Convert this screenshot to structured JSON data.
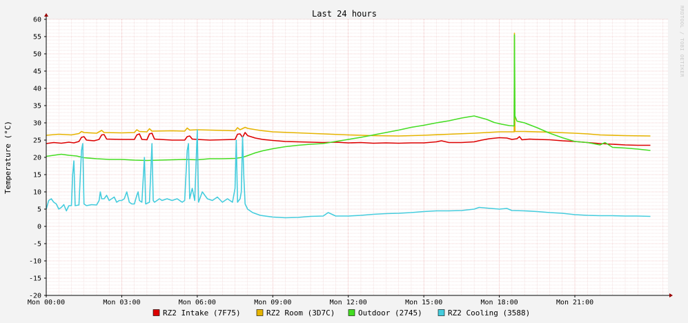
{
  "chart_data": {
    "type": "line",
    "title": "Last 24 hours",
    "ylabel": "Temperature (°C)",
    "watermark": "RRDTOOL / TOBI OETIKER",
    "ylim": [
      -20,
      60
    ],
    "xlim": [
      0,
      24.7
    ],
    "y_ticks": [
      60,
      55,
      50,
      45,
      40,
      35,
      30,
      25,
      20,
      15,
      10,
      5,
      0,
      -5,
      -10,
      -15,
      -20
    ],
    "x_ticks": [
      {
        "x": 0,
        "label": "Mon 00:00"
      },
      {
        "x": 3,
        "label": "Mon 03:00"
      },
      {
        "x": 6,
        "label": "Mon 06:00"
      },
      {
        "x": 9,
        "label": "Mon 09:00"
      },
      {
        "x": 12,
        "label": "Mon 12:00"
      },
      {
        "x": 15,
        "label": "Mon 15:00"
      },
      {
        "x": 18,
        "label": "Mon 18:00"
      },
      {
        "x": 21,
        "label": "Mon 21:00"
      }
    ],
    "grid": true,
    "legend_position": "bottom",
    "series": [
      {
        "name": "RZ2 Intake (7F75)",
        "color": "#dd0000",
        "points": [
          [
            0,
            24.0
          ],
          [
            0.3,
            24.3
          ],
          [
            0.6,
            24.1
          ],
          [
            0.9,
            24.4
          ],
          [
            1.1,
            24.2
          ],
          [
            1.3,
            24.6
          ],
          [
            1.4,
            25.8
          ],
          [
            1.5,
            26.0
          ],
          [
            1.6,
            25.0
          ],
          [
            1.9,
            24.8
          ],
          [
            2.1,
            25.2
          ],
          [
            2.2,
            26.5
          ],
          [
            2.3,
            26.6
          ],
          [
            2.4,
            25.3
          ],
          [
            3.0,
            25.2
          ],
          [
            3.5,
            25.2
          ],
          [
            3.6,
            26.5
          ],
          [
            3.7,
            26.8
          ],
          [
            3.8,
            25.2
          ],
          [
            4.0,
            25.1
          ],
          [
            4.1,
            26.8
          ],
          [
            4.2,
            27.0
          ],
          [
            4.3,
            25.3
          ],
          [
            5.0,
            25.0
          ],
          [
            5.5,
            25.0
          ],
          [
            5.6,
            26.0
          ],
          [
            5.7,
            26.2
          ],
          [
            5.8,
            25.3
          ],
          [
            6.0,
            25.2
          ],
          [
            6.5,
            25.0
          ],
          [
            7.0,
            25.1
          ],
          [
            7.5,
            25.2
          ],
          [
            7.6,
            26.7
          ],
          [
            7.7,
            26.8
          ],
          [
            7.8,
            25.8
          ],
          [
            7.9,
            27.2
          ],
          [
            8.0,
            26.3
          ],
          [
            8.3,
            25.6
          ],
          [
            8.6,
            25.2
          ],
          [
            9.0,
            24.9
          ],
          [
            9.5,
            24.6
          ],
          [
            10.0,
            24.5
          ],
          [
            10.5,
            24.4
          ],
          [
            11.0,
            24.3
          ],
          [
            11.5,
            24.4
          ],
          [
            12.0,
            24.2
          ],
          [
            12.5,
            24.3
          ],
          [
            13.0,
            24.1
          ],
          [
            13.5,
            24.2
          ],
          [
            14.0,
            24.1
          ],
          [
            14.5,
            24.2
          ],
          [
            15.0,
            24.2
          ],
          [
            15.5,
            24.5
          ],
          [
            15.7,
            24.8
          ],
          [
            16.0,
            24.3
          ],
          [
            16.5,
            24.3
          ],
          [
            17.0,
            24.5
          ],
          [
            17.3,
            25.0
          ],
          [
            17.6,
            25.4
          ],
          [
            18.0,
            25.7
          ],
          [
            18.3,
            25.6
          ],
          [
            18.5,
            25.2
          ],
          [
            18.7,
            25.4
          ],
          [
            18.8,
            26.0
          ],
          [
            18.9,
            25.1
          ],
          [
            19.2,
            25.3
          ],
          [
            19.5,
            25.2
          ],
          [
            20.0,
            25.1
          ],
          [
            20.5,
            24.8
          ],
          [
            21.0,
            24.6
          ],
          [
            21.5,
            24.3
          ],
          [
            22.0,
            24.0
          ],
          [
            22.5,
            23.8
          ],
          [
            23.0,
            23.6
          ],
          [
            23.5,
            23.5
          ],
          [
            24.0,
            23.5
          ]
        ]
      },
      {
        "name": "RZ2 Room (3D7C)",
        "color": "#e6b400",
        "points": [
          [
            0,
            26.4
          ],
          [
            0.5,
            26.7
          ],
          [
            1.0,
            26.5
          ],
          [
            1.3,
            26.9
          ],
          [
            1.4,
            27.5
          ],
          [
            1.5,
            27.2
          ],
          [
            2.0,
            27.0
          ],
          [
            2.2,
            27.8
          ],
          [
            2.3,
            27.2
          ],
          [
            3.0,
            27.1
          ],
          [
            3.5,
            27.2
          ],
          [
            3.6,
            28.0
          ],
          [
            3.7,
            27.5
          ],
          [
            4.0,
            27.4
          ],
          [
            4.1,
            28.3
          ],
          [
            4.2,
            27.6
          ],
          [
            5.0,
            27.7
          ],
          [
            5.5,
            27.6
          ],
          [
            5.6,
            28.5
          ],
          [
            5.7,
            27.9
          ],
          [
            6.0,
            28.0
          ],
          [
            6.5,
            27.9
          ],
          [
            7.0,
            27.8
          ],
          [
            7.5,
            27.7
          ],
          [
            7.6,
            28.6
          ],
          [
            7.7,
            28.0
          ],
          [
            7.9,
            28.7
          ],
          [
            8.0,
            28.4
          ],
          [
            8.5,
            27.8
          ],
          [
            9.0,
            27.4
          ],
          [
            10.0,
            27.1
          ],
          [
            11.0,
            26.8
          ],
          [
            12.0,
            26.5
          ],
          [
            13.0,
            26.3
          ],
          [
            14.0,
            26.2
          ],
          [
            15.0,
            26.4
          ],
          [
            16.0,
            26.7
          ],
          [
            17.0,
            27.0
          ],
          [
            18.0,
            27.4
          ],
          [
            18.5,
            27.4
          ],
          [
            18.59,
            27.4
          ],
          [
            18.6,
            56.0
          ],
          [
            18.62,
            27.5
          ],
          [
            19.0,
            27.5
          ],
          [
            20.0,
            27.3
          ],
          [
            21.0,
            27.0
          ],
          [
            21.5,
            26.8
          ],
          [
            22.0,
            26.5
          ],
          [
            23.0,
            26.3
          ],
          [
            24.0,
            26.2
          ]
        ]
      },
      {
        "name": "Outdoor (2745)",
        "color": "#44dd22",
        "points": [
          [
            0,
            20.3
          ],
          [
            0.3,
            20.6
          ],
          [
            0.6,
            20.9
          ],
          [
            0.9,
            20.6
          ],
          [
            1.2,
            20.4
          ],
          [
            1.5,
            19.9
          ],
          [
            2.0,
            19.6
          ],
          [
            2.5,
            19.4
          ],
          [
            3.0,
            19.4
          ],
          [
            3.5,
            19.2
          ],
          [
            4.0,
            19.1
          ],
          [
            4.5,
            19.2
          ],
          [
            5.0,
            19.3
          ],
          [
            5.5,
            19.4
          ],
          [
            6.0,
            19.3
          ],
          [
            6.5,
            19.6
          ],
          [
            7.0,
            19.6
          ],
          [
            7.5,
            19.7
          ],
          [
            7.8,
            20.0
          ],
          [
            8.0,
            20.5
          ],
          [
            8.3,
            21.3
          ],
          [
            8.6,
            21.9
          ],
          [
            9.0,
            22.5
          ],
          [
            9.5,
            23.1
          ],
          [
            10.0,
            23.5
          ],
          [
            10.5,
            23.8
          ],
          [
            11.0,
            24.0
          ],
          [
            11.5,
            24.6
          ],
          [
            12.0,
            25.2
          ],
          [
            12.5,
            25.8
          ],
          [
            13.0,
            26.5
          ],
          [
            13.5,
            27.2
          ],
          [
            14.0,
            27.9
          ],
          [
            14.5,
            28.7
          ],
          [
            15.0,
            29.3
          ],
          [
            15.5,
            30.0
          ],
          [
            16.0,
            30.6
          ],
          [
            16.5,
            31.4
          ],
          [
            17.0,
            32.0
          ],
          [
            17.5,
            31.0
          ],
          [
            17.8,
            30.1
          ],
          [
            18.1,
            29.6
          ],
          [
            18.4,
            29.2
          ],
          [
            18.59,
            29.1
          ],
          [
            18.6,
            55.5
          ],
          [
            18.62,
            32.0
          ],
          [
            18.7,
            30.5
          ],
          [
            19.0,
            30.0
          ],
          [
            19.5,
            28.6
          ],
          [
            20.0,
            27.0
          ],
          [
            20.5,
            25.7
          ],
          [
            21.0,
            24.6
          ],
          [
            21.5,
            24.3
          ],
          [
            22.0,
            23.6
          ],
          [
            22.2,
            24.3
          ],
          [
            22.5,
            22.9
          ],
          [
            23.0,
            22.7
          ],
          [
            23.5,
            22.4
          ],
          [
            24.0,
            22.0
          ]
        ]
      },
      {
        "name": "RZ2 Cooling (3588)",
        "color": "#44ccdd",
        "points": [
          [
            0,
            5.0
          ],
          [
            0.1,
            7.5
          ],
          [
            0.2,
            8.0
          ],
          [
            0.3,
            7.0
          ],
          [
            0.4,
            6.5
          ],
          [
            0.5,
            5.0
          ],
          [
            0.6,
            5.5
          ],
          [
            0.7,
            6.3
          ],
          [
            0.8,
            4.5
          ],
          [
            0.9,
            6.0
          ],
          [
            1.0,
            6.0
          ],
          [
            1.05,
            15.0
          ],
          [
            1.1,
            19.0
          ],
          [
            1.15,
            6.0
          ],
          [
            1.3,
            6.2
          ],
          [
            1.4,
            22.0
          ],
          [
            1.45,
            24.0
          ],
          [
            1.5,
            6.5
          ],
          [
            1.6,
            6.0
          ],
          [
            1.8,
            6.3
          ],
          [
            2.0,
            6.2
          ],
          [
            2.1,
            7.5
          ],
          [
            2.15,
            10.0
          ],
          [
            2.2,
            8.0
          ],
          [
            2.3,
            8.0
          ],
          [
            2.4,
            9.0
          ],
          [
            2.5,
            7.5
          ],
          [
            2.6,
            8.0
          ],
          [
            2.7,
            8.5
          ],
          [
            2.8,
            7.0
          ],
          [
            2.9,
            7.5
          ],
          [
            3.0,
            7.5
          ],
          [
            3.1,
            8.0
          ],
          [
            3.2,
            10.0
          ],
          [
            3.3,
            7.0
          ],
          [
            3.4,
            6.5
          ],
          [
            3.5,
            6.5
          ],
          [
            3.6,
            9.0
          ],
          [
            3.65,
            10.0
          ],
          [
            3.7,
            7.5
          ],
          [
            3.8,
            7.0
          ],
          [
            3.9,
            20.0
          ],
          [
            3.95,
            6.5
          ],
          [
            4.1,
            7.0
          ],
          [
            4.2,
            24.0
          ],
          [
            4.25,
            7.5
          ],
          [
            4.3,
            7.0
          ],
          [
            4.5,
            8.0
          ],
          [
            4.6,
            7.5
          ],
          [
            4.8,
            8.0
          ],
          [
            5.0,
            7.5
          ],
          [
            5.2,
            8.0
          ],
          [
            5.4,
            7.0
          ],
          [
            5.5,
            7.5
          ],
          [
            5.6,
            22.0
          ],
          [
            5.65,
            24.0
          ],
          [
            5.7,
            8.0
          ],
          [
            5.8,
            11.0
          ],
          [
            5.9,
            7.5
          ],
          [
            6.0,
            28.0
          ],
          [
            6.05,
            7.0
          ],
          [
            6.2,
            10.0
          ],
          [
            6.4,
            8.0
          ],
          [
            6.6,
            7.5
          ],
          [
            6.8,
            8.5
          ],
          [
            7.0,
            7.0
          ],
          [
            7.2,
            8.0
          ],
          [
            7.4,
            7.0
          ],
          [
            7.5,
            11.0
          ],
          [
            7.55,
            25.0
          ],
          [
            7.6,
            7.0
          ],
          [
            7.7,
            8.0
          ],
          [
            7.75,
            10.0
          ],
          [
            7.8,
            26.0
          ],
          [
            7.85,
            14.0
          ],
          [
            7.9,
            6.5
          ],
          [
            8.0,
            5.0
          ],
          [
            8.2,
            4.0
          ],
          [
            8.5,
            3.2
          ],
          [
            9.0,
            2.7
          ],
          [
            9.5,
            2.5
          ],
          [
            10.0,
            2.6
          ],
          [
            10.5,
            2.9
          ],
          [
            11.0,
            3.0
          ],
          [
            11.2,
            4.0
          ],
          [
            11.5,
            3.0
          ],
          [
            12.0,
            3.0
          ],
          [
            12.5,
            3.2
          ],
          [
            13.0,
            3.5
          ],
          [
            13.5,
            3.7
          ],
          [
            14.0,
            3.8
          ],
          [
            14.5,
            4.0
          ],
          [
            15.0,
            4.3
          ],
          [
            15.5,
            4.5
          ],
          [
            16.0,
            4.5
          ],
          [
            16.5,
            4.6
          ],
          [
            17.0,
            5.0
          ],
          [
            17.2,
            5.5
          ],
          [
            17.5,
            5.3
          ],
          [
            18.0,
            5.0
          ],
          [
            18.3,
            5.2
          ],
          [
            18.5,
            4.6
          ],
          [
            19.0,
            4.5
          ],
          [
            19.5,
            4.3
          ],
          [
            20.0,
            4.0
          ],
          [
            20.5,
            3.8
          ],
          [
            21.0,
            3.4
          ],
          [
            21.5,
            3.2
          ],
          [
            22.0,
            3.1
          ],
          [
            22.5,
            3.1
          ],
          [
            23.0,
            3.0
          ],
          [
            23.5,
            3.0
          ],
          [
            24.0,
            2.9
          ]
        ]
      }
    ]
  }
}
